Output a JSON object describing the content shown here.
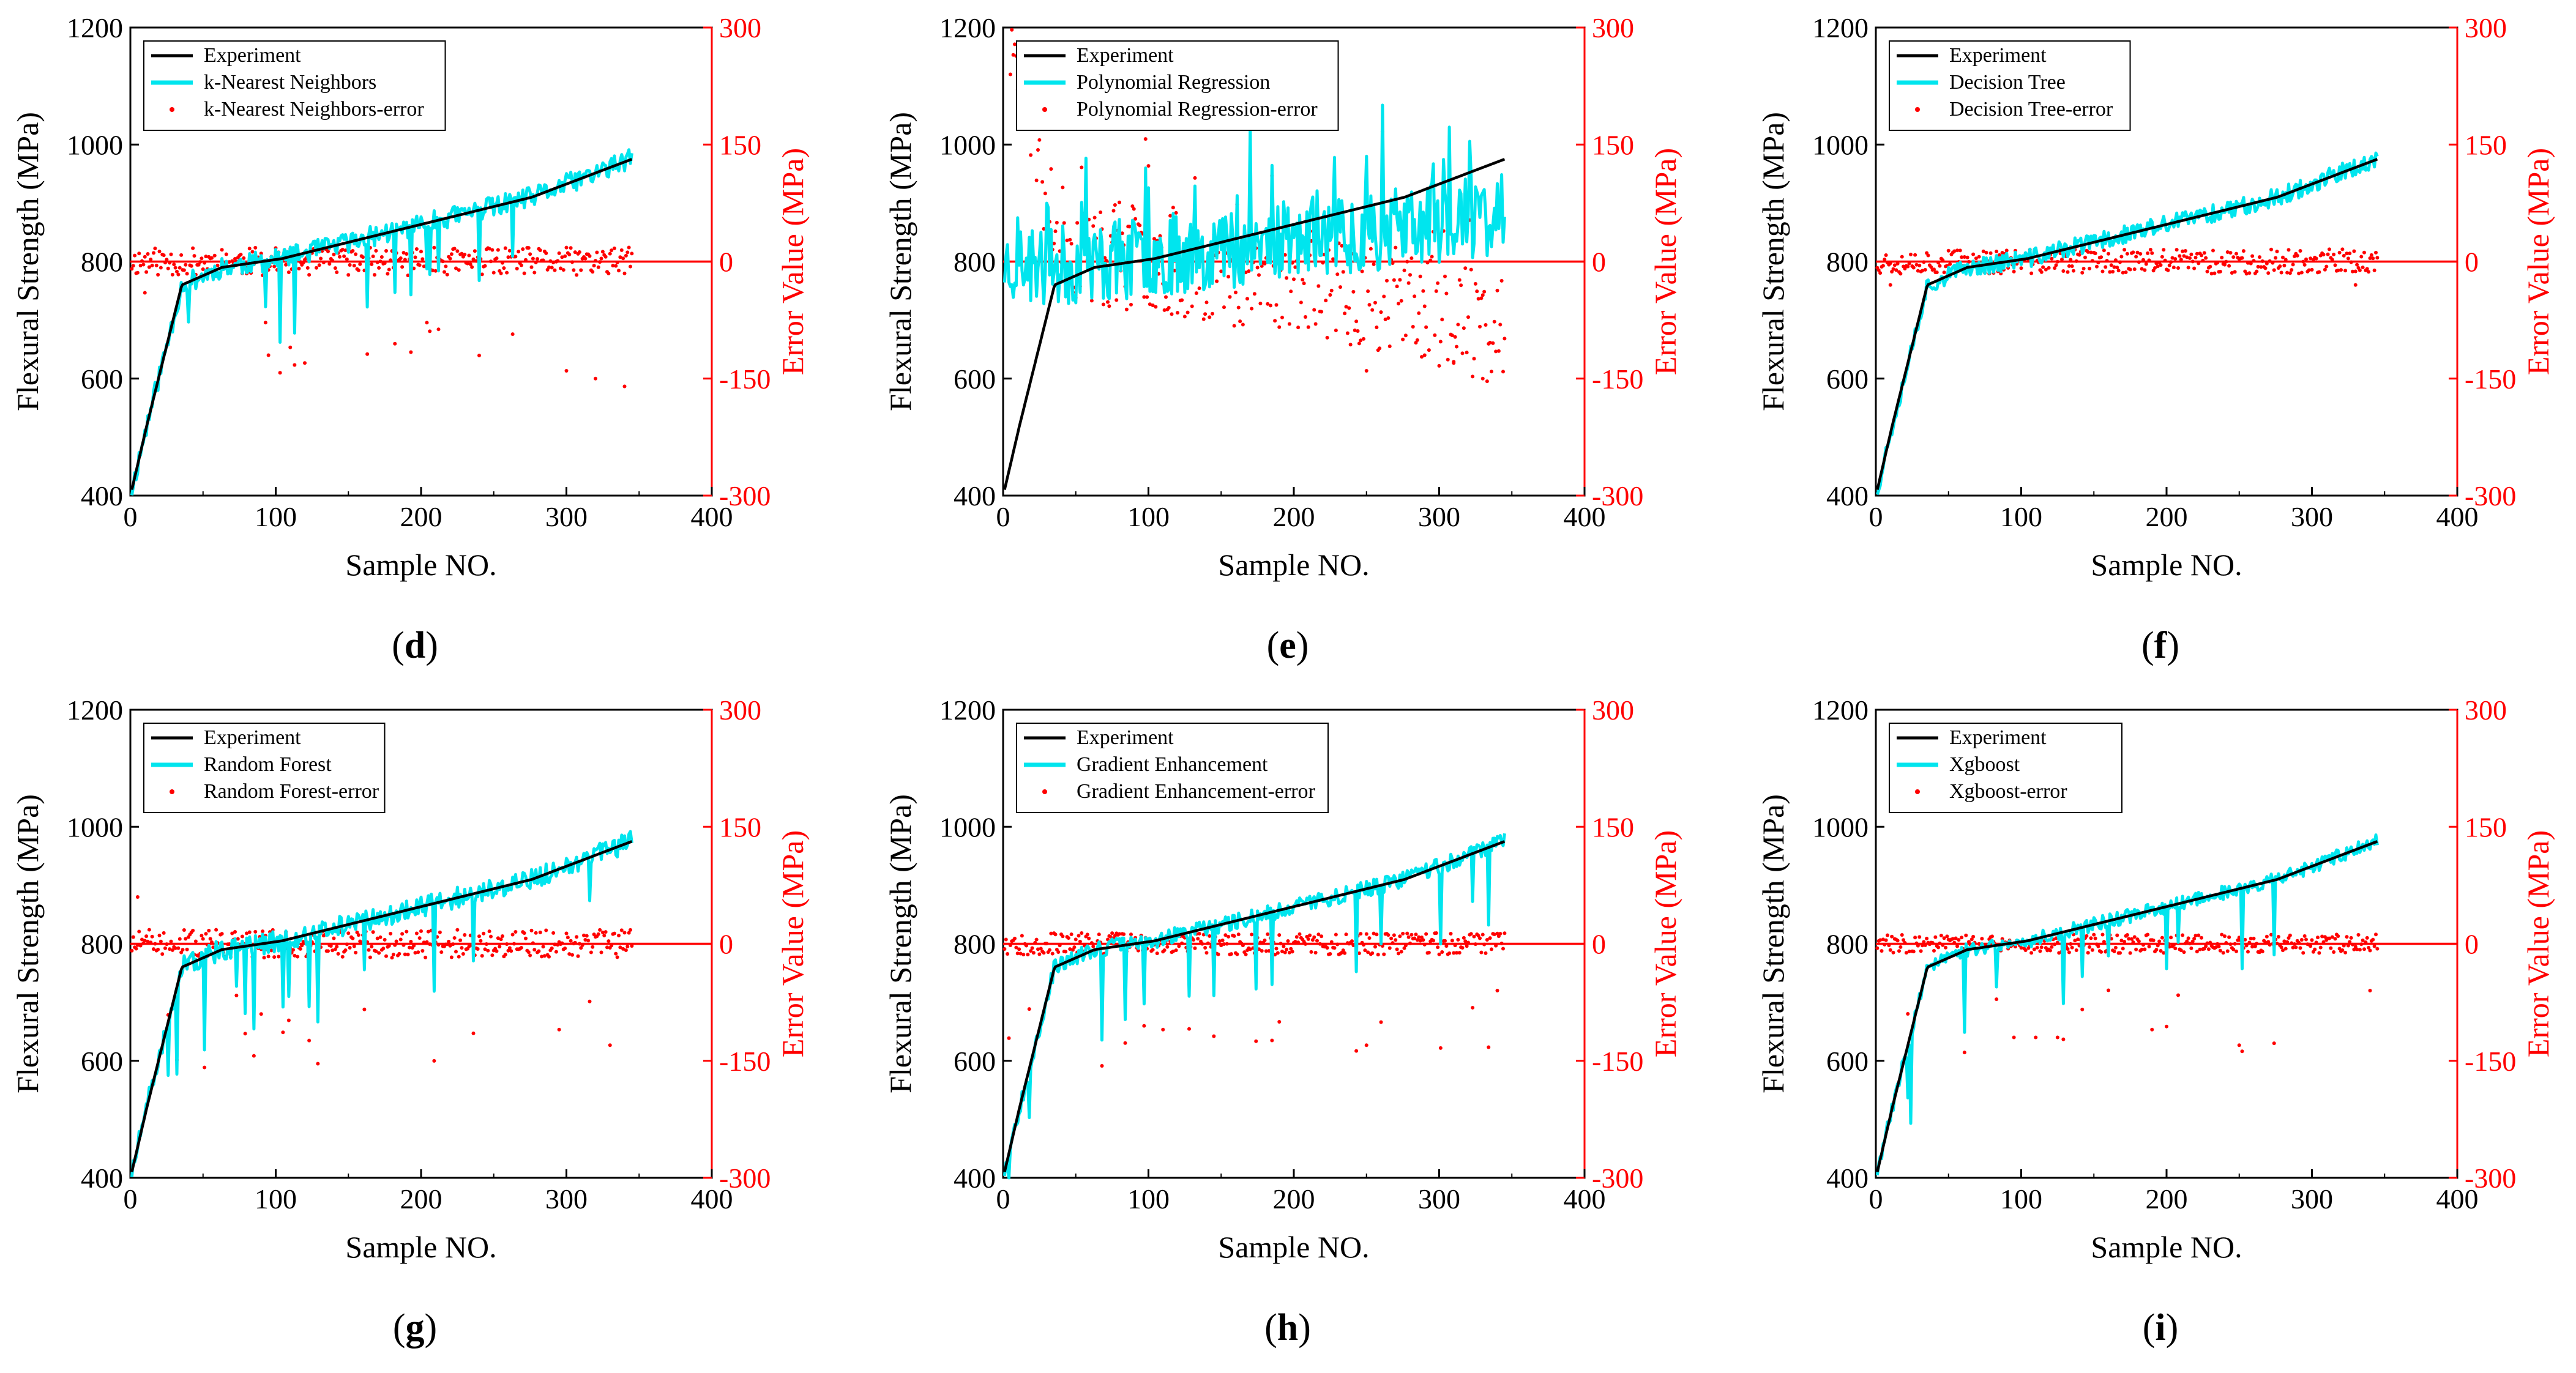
{
  "colors": {
    "experiment": "#000000",
    "prediction": "#00e5ee",
    "error": "#ff0000",
    "axis_left": "#000000",
    "axis_right": "#ff0000"
  },
  "chart_data": [
    {
      "type": "line",
      "panel_label": "d",
      "model": "k-Nearest Neighbors",
      "legend": [
        "Experiment",
        "k-Nearest Neighbors",
        "k-Nearest Neighbors-error"
      ],
      "xlabel": "Sample NO.",
      "ylabel": "Flexural Strength (MPa)",
      "y2label": "Error Value (MPa)",
      "xlim": [
        0,
        400
      ],
      "ylim": [
        400,
        1200
      ],
      "y2lim": [
        -300,
        300
      ],
      "xticks": [
        "0",
        "100",
        "200",
        "300",
        "400"
      ],
      "yticks": [
        "400",
        "600",
        "800",
        "1000",
        "1200"
      ],
      "y2ticks": [
        "-300",
        "-150",
        "0",
        "150",
        "300"
      ],
      "n_samples": 345,
      "noise_amp": 18,
      "dip_prob": 0.035,
      "dip_depth": [
        60,
        160
      ],
      "outliers": [
        [
          95,
          -120
        ],
        [
          110,
          -110
        ],
        [
          120,
          -130
        ],
        [
          300,
          -140
        ],
        [
          320,
          -150
        ],
        [
          340,
          -160
        ],
        [
          10,
          -40
        ]
      ],
      "seed": 11
    },
    {
      "type": "line",
      "panel_label": "e",
      "model": "Polynomial Regression",
      "legend": [
        "Experiment",
        "Polynomial Regression",
        "Polynomial Regression-error"
      ],
      "xlabel": "Sample NO.",
      "ylabel": "Flexural Strength (MPa)",
      "y2label": "Error Value (MPa)",
      "xlim": [
        0,
        400
      ],
      "ylim": [
        400,
        1200
      ],
      "y2lim": [
        -300,
        300
      ],
      "xticks": [
        "0",
        "100",
        "200",
        "300",
        "400"
      ],
      "yticks": [
        "400",
        "600",
        "800",
        "1000",
        "1200"
      ],
      "y2ticks": [
        "-300",
        "-150",
        "0",
        "150",
        "300"
      ],
      "n_samples": 345,
      "noise_amp": 70,
      "dip_prob": 0.02,
      "dip_depth": [
        60,
        140
      ],
      "outliers": [
        [
          5,
          240
        ],
        [
          10,
          220
        ],
        [
          20,
          180
        ],
        [
          290,
          -120
        ],
        [
          310,
          -130
        ],
        [
          330,
          -150
        ],
        [
          250,
          -140
        ]
      ],
      "seed": 23
    },
    {
      "type": "line",
      "panel_label": "f",
      "model": "Decision Tree",
      "legend": [
        "Experiment",
        "Decision Tree",
        "Decision Tree-error"
      ],
      "xlabel": "Sample NO.",
      "ylabel": "Flexural Strength (MPa)",
      "y2label": "Error Value (MPa)",
      "xlim": [
        0,
        400
      ],
      "ylim": [
        400,
        1200
      ],
      "y2lim": [
        -300,
        300
      ],
      "xticks": [
        "0",
        "100",
        "200",
        "300",
        "400"
      ],
      "yticks": [
        "400",
        "600",
        "800",
        "1000",
        "1200"
      ],
      "y2ticks": [
        "-300",
        "-150",
        "0",
        "150",
        "300"
      ],
      "n_samples": 345,
      "noise_amp": 16,
      "dip_prob": 0.0,
      "dip_depth": [
        0,
        0
      ],
      "outliers": [
        [
          10,
          -30
        ],
        [
          330,
          -30
        ]
      ],
      "seed": 37
    },
    {
      "type": "line",
      "panel_label": "g",
      "model": "Random Forest",
      "legend": [
        "Experiment",
        "Random Forest",
        "Random Forest-error"
      ],
      "xlabel": "Sample NO.",
      "ylabel": "Flexural Strength (MPa)",
      "y2label": "Error Value (MPa)",
      "xlim": [
        0,
        400
      ],
      "ylim": [
        400,
        1200
      ],
      "y2lim": [
        -300,
        300
      ],
      "xticks": [
        "0",
        "100",
        "200",
        "300",
        "400"
      ],
      "yticks": [
        "400",
        "600",
        "800",
        "1000",
        "1200"
      ],
      "y2ticks": [
        "-300",
        "-150",
        "0",
        "150",
        "300"
      ],
      "n_samples": 345,
      "noise_amp": 18,
      "dip_prob": 0.035,
      "dip_depth": [
        60,
        160
      ],
      "outliers": [
        [
          5,
          60
        ],
        [
          90,
          -90
        ],
        [
          295,
          -110
        ],
        [
          330,
          -130
        ]
      ],
      "seed": 51
    },
    {
      "type": "line",
      "panel_label": "h",
      "model": "Gradient Enhancement",
      "legend": [
        "Experiment",
        "Gradient Enhancement",
        "Gradient Enhancement-error"
      ],
      "xlabel": "Sample NO.",
      "ylabel": "Flexural Strength (MPa)",
      "y2label": "Error Value (MPa)",
      "xlim": [
        0,
        400
      ],
      "ylim": [
        400,
        1200
      ],
      "y2lim": [
        -300,
        300
      ],
      "xticks": [
        "0",
        "100",
        "200",
        "300",
        "400"
      ],
      "yticks": [
        "400",
        "600",
        "800",
        "1000",
        "1200"
      ],
      "y2ticks": [
        "-300",
        "-150",
        "0",
        "150",
        "300"
      ],
      "n_samples": 345,
      "noise_amp": 14,
      "dip_prob": 0.03,
      "dip_depth": [
        60,
        150
      ],
      "outliers": [
        [
          110,
          -110
        ],
        [
          190,
          -100
        ],
        [
          250,
          -130
        ],
        [
          340,
          -60
        ]
      ],
      "seed": 67
    },
    {
      "type": "line",
      "panel_label": "i",
      "model": "Xgboost",
      "legend": [
        "Experiment",
        "Xgboost",
        "Xgboost-error"
      ],
      "xlabel": "Sample NO.",
      "ylabel": "Flexural Strength (MPa)",
      "y2label": "Error Value (MPa)",
      "xlim": [
        0,
        400
      ],
      "ylim": [
        400,
        1200
      ],
      "y2lim": [
        -300,
        300
      ],
      "xticks": [
        "0",
        "100",
        "200",
        "300",
        "400"
      ],
      "yticks": [
        "400",
        "600",
        "800",
        "1000",
        "1200"
      ],
      "y2ticks": [
        "-300",
        "-150",
        "0",
        "150",
        "300"
      ],
      "n_samples": 345,
      "noise_amp": 12,
      "dip_prob": 0.02,
      "dip_depth": [
        60,
        150
      ],
      "outliers": [
        [
          95,
          -120
        ],
        [
          110,
          -120
        ],
        [
          125,
          -120
        ],
        [
          190,
          -110
        ],
        [
          250,
          -130
        ],
        [
          340,
          -60
        ]
      ],
      "seed": 83
    }
  ]
}
